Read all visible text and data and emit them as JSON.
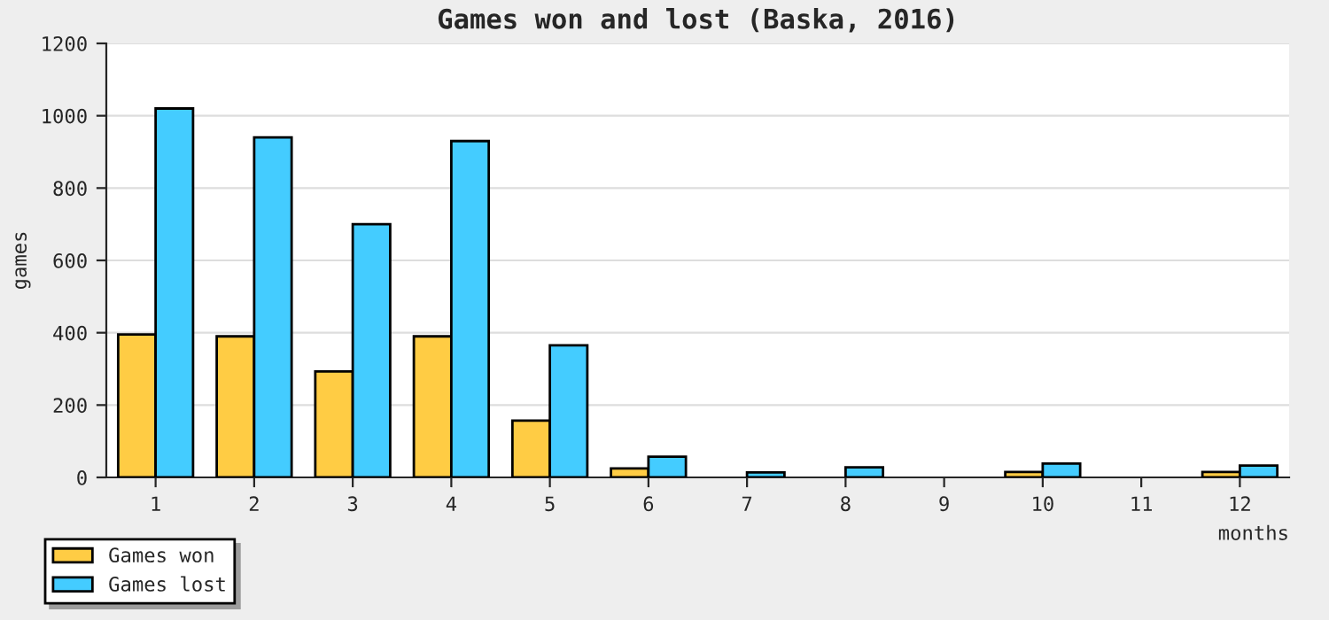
{
  "chart_data": {
    "type": "bar",
    "title": "Games won and lost (Baska, 2016)",
    "xlabel": "months",
    "ylabel": "games",
    "categories": [
      "1",
      "2",
      "3",
      "4",
      "5",
      "6",
      "7",
      "8",
      "9",
      "10",
      "11",
      "12"
    ],
    "series": [
      {
        "name": "Games won",
        "color": "#ffcc44",
        "values": [
          395,
          390,
          293,
          390,
          157,
          25,
          null,
          null,
          0,
          15,
          0,
          15
        ]
      },
      {
        "name": "Games lost",
        "color": "#44ccff",
        "values": [
          1020,
          940,
          700,
          930,
          365,
          57,
          14,
          28,
          null,
          38,
          null,
          33
        ]
      }
    ],
    "ylim": [
      0,
      1200
    ],
    "yticks": [
      0,
      200,
      400,
      600,
      800,
      1000,
      1200
    ],
    "grid": "y",
    "legend": "bottom left"
  }
}
